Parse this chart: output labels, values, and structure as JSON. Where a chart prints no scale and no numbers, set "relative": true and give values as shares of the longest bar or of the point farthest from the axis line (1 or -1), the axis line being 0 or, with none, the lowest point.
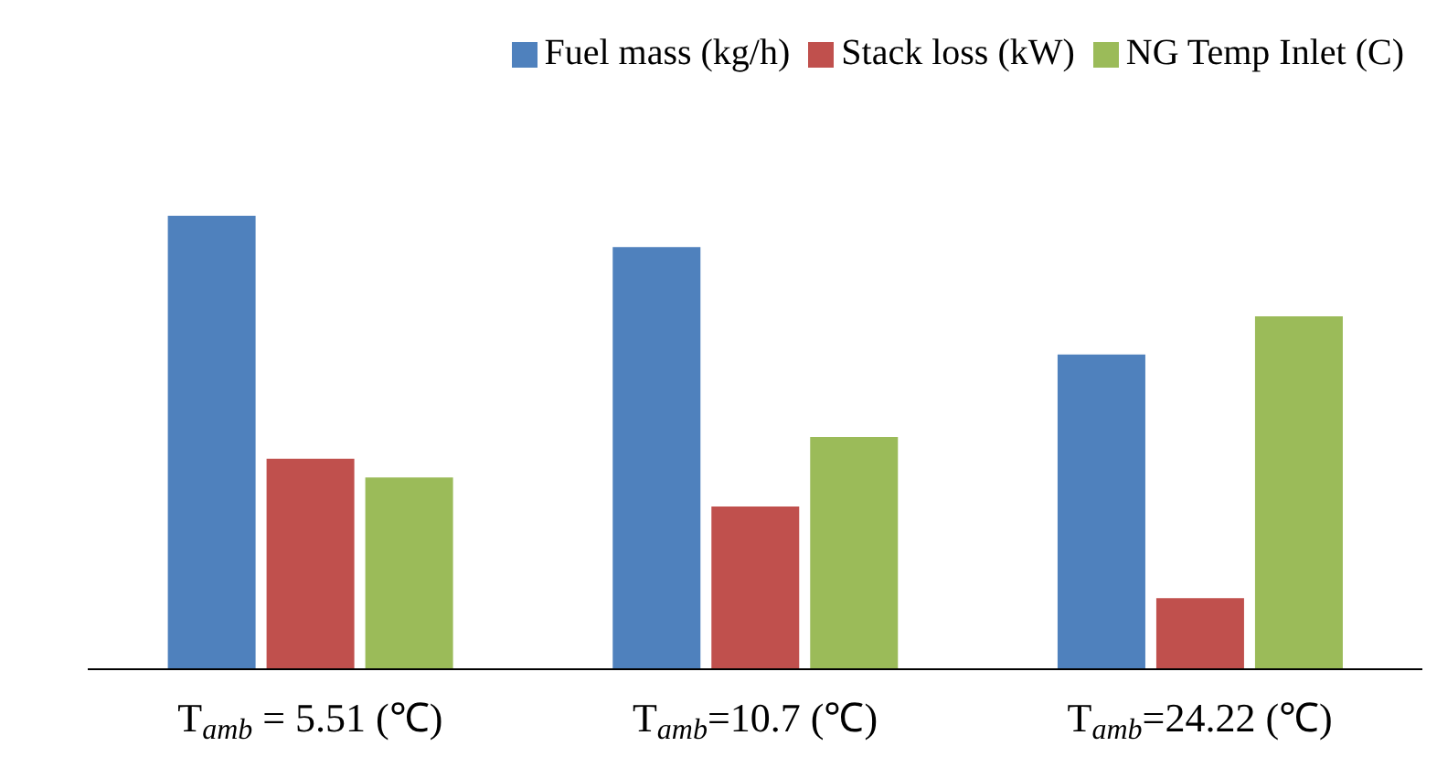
{
  "chart_data": {
    "type": "bar",
    "relative": true,
    "legend": "top right",
    "categories": [
      "T$_{amb}$ = 5.51 (℃)",
      "T$_{amb}$=10.7 (℃)",
      "T$_{amb}$=24.22 (℃)"
    ],
    "series": [
      {
        "name": "Fuel mass (kg/h)",
        "color": "#4f81bd",
        "values": [
          1,
          0.931,
          0.694
        ]
      },
      {
        "name": "Stack loss (kW)",
        "color": "#c0504d",
        "values": [
          0.464,
          0.359,
          0.157
        ]
      },
      {
        "name": "NG Temp Inlet (C)",
        "color": "#9bbb59",
        "values": [
          0.423,
          0.512,
          0.778
        ]
      }
    ]
  }
}
